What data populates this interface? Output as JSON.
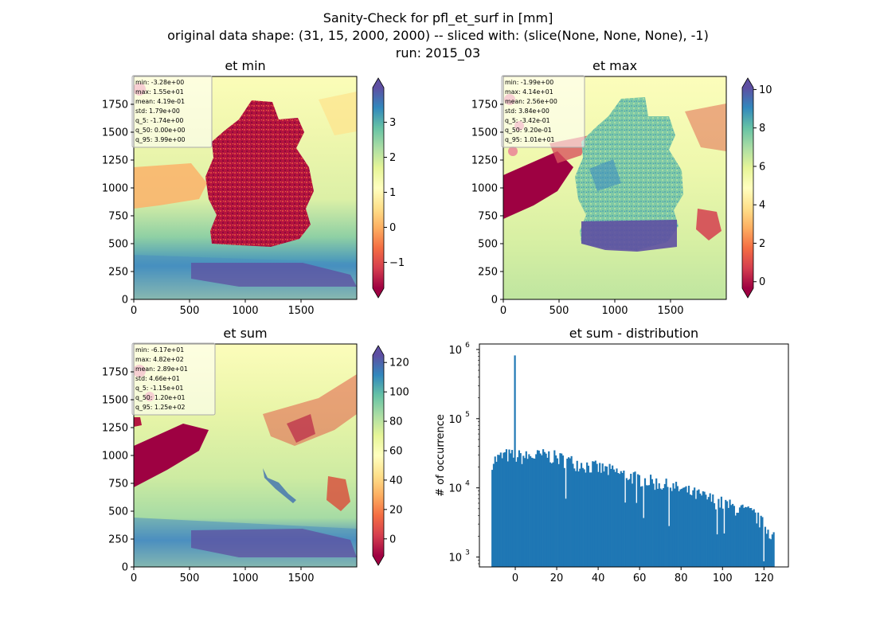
{
  "suptitle": {
    "line1": "Sanity-Check for pfl_et_surf in [mm]",
    "line2": "original data shape: (31, 15, 2000, 2000) -- sliced with: (slice(None, None, None), -1)",
    "line3": "run: 2015_03"
  },
  "colors": {
    "map_sea_dark": "#7a0b34",
    "map_land_red": "#c7223f",
    "map_pale": "#fbfdb4",
    "map_green": "#c6e79e",
    "map_blue": "#3b84b9",
    "map_purple": "#5a50a4",
    "hist_bar": "#1f77b4"
  },
  "chart_data": [
    {
      "type": "heatmap",
      "title": "et min",
      "xlim": [
        0,
        2000
      ],
      "ylim": [
        0,
        2000
      ],
      "xticks": [
        0,
        500,
        1000,
        1500
      ],
      "yticks": [
        0,
        250,
        500,
        750,
        1000,
        1250,
        1500,
        1750
      ],
      "colormap": "Spectral",
      "colorbar": {
        "vmin": -1.74,
        "vmax": 3.99,
        "ticks": [
          -1,
          0,
          1,
          2,
          3
        ],
        "extend": "both"
      },
      "stats": [
        "min: -3.28e+00",
        "max: 1.55e+01",
        "mean: 4.19e-01",
        "std: 1.79e+00",
        "q_5: -1.74e+00",
        "q_50: 0.00e+00",
        "q_95: 3.99e+00"
      ]
    },
    {
      "type": "heatmap",
      "title": "et max",
      "xlim": [
        0,
        2000
      ],
      "ylim": [
        0,
        2000
      ],
      "xticks": [
        0,
        500,
        1000,
        1500
      ],
      "yticks": [
        0,
        250,
        500,
        750,
        1000,
        1250,
        1500,
        1750
      ],
      "colormap": "Spectral",
      "colorbar": {
        "vmin": -0.342,
        "vmax": 10.1,
        "ticks": [
          0,
          2,
          4,
          6,
          8,
          10
        ],
        "extend": "both"
      },
      "stats": [
        "min: -1.99e+00",
        "max: 4.14e+01",
        "mean: 2.56e+00",
        "std: 3.84e+00",
        "q_5: -3.42e-01",
        "q_50: 9.20e-01",
        "q_95: 1.01e+01"
      ]
    },
    {
      "type": "heatmap",
      "title": "et sum",
      "xlim": [
        0,
        2000
      ],
      "ylim": [
        0,
        2000
      ],
      "xticks": [
        0,
        500,
        1000,
        1500
      ],
      "yticks": [
        0,
        250,
        500,
        750,
        1000,
        1250,
        1500,
        1750
      ],
      "colormap": "Spectral",
      "colorbar": {
        "vmin": -11.5,
        "vmax": 125,
        "ticks": [
          0,
          20,
          40,
          60,
          80,
          100,
          120
        ],
        "extend": "both"
      },
      "stats": [
        "min: -6.17e+01",
        "max: 4.82e+02",
        "mean: 2.89e+01",
        "std: 4.66e+01",
        "q_5: -1.15e+01",
        "q_50: 1.20e+01",
        "q_95: 1.25e+02"
      ]
    },
    {
      "type": "bar",
      "title": "et sum - distribution",
      "ylabel": "# of occurrence",
      "xlabel": "",
      "yscale": "log",
      "xlim": [
        -17.3,
        131.8
      ],
      "ylim": [
        720,
        1200000
      ],
      "xticks": [
        0,
        20,
        40,
        60,
        80,
        100,
        120
      ],
      "yticks": [
        {
          "value": 1000,
          "base": "10",
          "exp": "3"
        },
        {
          "value": 10000,
          "base": "10",
          "exp": "4"
        },
        {
          "value": 100000,
          "base": "10",
          "exp": "5"
        },
        {
          "value": 1000000,
          "base": "10",
          "exp": "6"
        }
      ],
      "bin_range": [
        -11.5,
        125
      ],
      "bins": 200,
      "spike": {
        "x": 0,
        "value": 820000
      },
      "trend": [
        {
          "x": -11.5,
          "value": 24000
        },
        {
          "x": -5,
          "value": 30000
        },
        {
          "x": 5,
          "value": 28000
        },
        {
          "x": 15,
          "value": 30000
        },
        {
          "x": 25,
          "value": 25000
        },
        {
          "x": 35,
          "value": 21000
        },
        {
          "x": 45,
          "value": 18000
        },
        {
          "x": 55,
          "value": 15000
        },
        {
          "x": 65,
          "value": 12500
        },
        {
          "x": 75,
          "value": 10500
        },
        {
          "x": 85,
          "value": 8500
        },
        {
          "x": 95,
          "value": 6800
        },
        {
          "x": 105,
          "value": 5300
        },
        {
          "x": 115,
          "value": 4200
        },
        {
          "x": 125,
          "value": 2000
        }
      ]
    }
  ]
}
